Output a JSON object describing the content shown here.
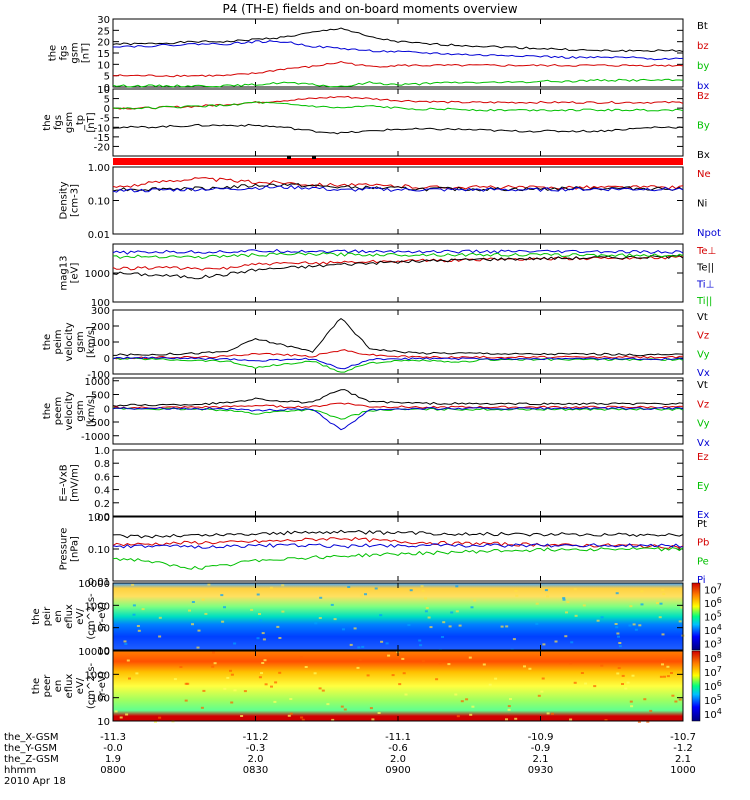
{
  "title": "P4 (TH-E) fields and on-board moments overview",
  "chart_data": [
    {
      "type": "line",
      "ylabel": [
        "the",
        "fgs",
        "gsm",
        "[nT]"
      ],
      "ylim": [
        0,
        30
      ],
      "yticks": [
        "0",
        "5",
        "10",
        "15",
        "20",
        "25",
        "30"
      ],
      "tick_values": [
        0,
        5,
        10,
        15,
        20,
        25,
        30
      ],
      "log": false,
      "series": [
        {
          "name": "Bt",
          "color": "#000000",
          "values": [
            19,
            19,
            19.5,
            20,
            20,
            21,
            22,
            24,
            26,
            22,
            20,
            19,
            18.5,
            18,
            17.5,
            17,
            16.5,
            16,
            16,
            16,
            16
          ]
        },
        {
          "name": "bz",
          "color": "#d40000",
          "values": [
            5,
            5,
            5,
            5,
            5,
            6,
            8,
            9,
            11,
            9,
            9.5,
            9.5,
            9.5,
            9.5,
            9.5,
            9.5,
            9.5,
            9.5,
            9.5,
            9.5,
            9.5
          ]
        },
        {
          "name": "by",
          "color": "#00c000",
          "values": [
            0.5,
            0.5,
            0.5,
            0.5,
            0.5,
            1,
            2,
            1,
            0,
            2,
            1,
            1.5,
            2,
            2,
            2,
            2.5,
            2.5,
            3,
            3,
            3,
            3
          ]
        },
        {
          "name": "bx",
          "color": "#0000d4",
          "values": [
            18,
            18,
            18.5,
            19,
            19,
            20,
            20,
            18,
            17,
            16,
            15.5,
            15,
            14.5,
            14,
            14,
            13.5,
            13,
            13,
            13,
            12.5,
            12.5
          ]
        }
      ]
    },
    {
      "type": "line",
      "ylabel": [
        "the",
        "fgs",
        "gsm",
        "_tp",
        "[nT]"
      ],
      "ylim": [
        -25,
        10
      ],
      "yticks": [
        "-20",
        "-15",
        "-10",
        "-5",
        "0",
        "5",
        "10"
      ],
      "tick_values": [
        -20,
        -15,
        -10,
        -5,
        0,
        5,
        10
      ],
      "log": false,
      "series": [
        {
          "name": "Bz",
          "color": "#d40000",
          "values": [
            0,
            0,
            0.5,
            1,
            2,
            3,
            4,
            5,
            6,
            5,
            4,
            3.5,
            3,
            3,
            3,
            3,
            3,
            3,
            3,
            3,
            3
          ]
        },
        {
          "name": "By",
          "color": "#00c000",
          "values": [
            0,
            0,
            0.5,
            1,
            1.5,
            3,
            2,
            1,
            0,
            1,
            0,
            -0.5,
            -0.5,
            -1,
            -1,
            -1,
            -1,
            -1,
            -1,
            -1,
            -1
          ]
        },
        {
          "name": "Bx",
          "color": "#000000",
          "values": [
            -10,
            -10,
            -9.5,
            -9,
            -9,
            -9,
            -10,
            -12,
            -13,
            -12,
            -11,
            -11,
            -11,
            -11.5,
            -12,
            -12,
            -12,
            -12,
            -11,
            -10,
            -10
          ]
        }
      ]
    },
    {
      "type": "line",
      "ylabel": [
        "Density",
        "[cm-3]"
      ],
      "ylim": [
        0.01,
        1.0
      ],
      "yticks": [
        "0.01",
        "0.10",
        "1.00"
      ],
      "tick_values": [
        0.01,
        0.1,
        1.0
      ],
      "log": true,
      "series": [
        {
          "name": "Ne",
          "color": "#d40000",
          "values": [
            0.25,
            0.3,
            0.4,
            0.45,
            0.4,
            0.35,
            0.35,
            0.3,
            0.3,
            0.28,
            0.27,
            0.25,
            0.25,
            0.25,
            0.25,
            0.24,
            0.25,
            0.25,
            0.25,
            0.25,
            0.25
          ]
        },
        {
          "name": "Ni",
          "color": "#000000",
          "values": [
            0.22,
            0.22,
            0.23,
            0.23,
            0.25,
            0.28,
            0.3,
            0.27,
            0.25,
            0.24,
            0.23,
            0.22,
            0.22,
            0.22,
            0.22,
            0.22,
            0.23,
            0.23,
            0.23,
            0.23,
            0.23
          ]
        },
        {
          "name": "Npot",
          "color": "#0000d4",
          "values": [
            0.2,
            0.2,
            0.21,
            0.22,
            0.22,
            0.24,
            0.25,
            0.24,
            0.2,
            0.22,
            0.21,
            0.21,
            0.21,
            0.21,
            0.21,
            0.21,
            0.22,
            0.22,
            0.22,
            0.22,
            0.22
          ]
        }
      ]
    },
    {
      "type": "line",
      "ylabel": [
        "mag13",
        "[eV]"
      ],
      "ylim": [
        100,
        10000
      ],
      "yticks": [
        "100",
        "1000"
      ],
      "tick_values": [
        100,
        1000
      ],
      "log": true,
      "series": [
        {
          "name": "Te⊥",
          "color": "#d40000",
          "values": [
            1400,
            1500,
            1600,
            1300,
            1500,
            2000,
            2100,
            2200,
            2400,
            2500,
            2600,
            2700,
            2800,
            2900,
            3000,
            3100,
            3200,
            3300,
            3300,
            3400,
            3500
          ]
        },
        {
          "name": "Te||",
          "color": "#000000",
          "values": [
            1000,
            900,
            800,
            700,
            900,
            1300,
            1500,
            1700,
            2000,
            2200,
            2400,
            2600,
            2800,
            3000,
            3100,
            3200,
            3300,
            3400,
            3500,
            3600,
            3700
          ]
        },
        {
          "name": "Ti⊥",
          "color": "#0000d4",
          "values": [
            5000,
            5200,
            5400,
            5300,
            5500,
            5700,
            5800,
            5700,
            5600,
            5500,
            5500,
            5500,
            5500,
            5500,
            5500,
            5400,
            5400,
            5400,
            5300,
            5300,
            5300
          ]
        },
        {
          "name": "Ti||",
          "color": "#00c000",
          "values": [
            3600,
            3700,
            3800,
            3500,
            3900,
            4200,
            4400,
            4500,
            4400,
            4300,
            4300,
            4300,
            4300,
            4300,
            4300,
            4200,
            4200,
            4200,
            4100,
            4100,
            4100
          ]
        }
      ]
    },
    {
      "type": "line",
      "ylabel": [
        "the",
        "peim",
        "velocity",
        "gsm",
        "[km/s]"
      ],
      "ylim": [
        -100,
        300
      ],
      "yticks": [
        "-100",
        "0",
        "100",
        "200",
        "300"
      ],
      "tick_values": [
        -100,
        0,
        100,
        200,
        300
      ],
      "log": false,
      "series": [
        {
          "name": "Vt",
          "color": "#000000",
          "values": [
            20,
            20,
            25,
            30,
            40,
            120,
            80,
            40,
            250,
            60,
            40,
            30,
            30,
            30,
            25,
            25,
            25,
            25,
            20,
            20,
            20
          ]
        },
        {
          "name": "Vz",
          "color": "#d40000",
          "values": [
            0,
            0,
            5,
            5,
            10,
            30,
            20,
            10,
            50,
            20,
            10,
            5,
            5,
            5,
            5,
            5,
            5,
            5,
            5,
            5,
            5
          ]
        },
        {
          "name": "Vy",
          "color": "#00c000",
          "values": [
            -5,
            -5,
            -10,
            -15,
            -20,
            -60,
            -40,
            -20,
            -90,
            -30,
            -20,
            -15,
            -30,
            -10,
            -10,
            -10,
            -10,
            -10,
            -10,
            -10,
            -10
          ]
        },
        {
          "name": "Vx",
          "color": "#0000d4",
          "values": [
            0,
            0,
            0,
            -5,
            -5,
            -20,
            -10,
            -5,
            -70,
            -10,
            -5,
            -5,
            -5,
            -5,
            -5,
            -5,
            -5,
            -5,
            -5,
            -5,
            -5
          ]
        }
      ]
    },
    {
      "type": "line",
      "ylabel": [
        "the",
        "peem",
        "velocity",
        "gsm",
        "[km/s]"
      ],
      "ylim": [
        -1300,
        1100
      ],
      "yticks": [
        "-1000",
        "-500",
        "0",
        "500",
        "1000"
      ],
      "tick_values": [
        -1000,
        -500,
        0,
        500,
        1000
      ],
      "log": false,
      "series": [
        {
          "name": "Vt",
          "color": "#000000",
          "values": [
            100,
            120,
            120,
            150,
            200,
            350,
            250,
            200,
            700,
            250,
            200,
            180,
            170,
            160,
            160,
            160,
            160,
            160,
            160,
            160,
            160
          ]
        },
        {
          "name": "Vz",
          "color": "#d40000",
          "values": [
            20,
            20,
            30,
            40,
            50,
            100,
            60,
            50,
            200,
            60,
            50,
            40,
            40,
            40,
            40,
            40,
            40,
            40,
            40,
            40,
            40
          ]
        },
        {
          "name": "Vy",
          "color": "#00c000",
          "values": [
            -20,
            -20,
            -30,
            -40,
            -60,
            -200,
            -100,
            -50,
            -400,
            -80,
            -50,
            -40,
            -40,
            -40,
            -40,
            -40,
            -40,
            -40,
            -40,
            -40,
            -40
          ]
        },
        {
          "name": "Vx",
          "color": "#0000d4",
          "values": [
            0,
            0,
            0,
            -10,
            -20,
            -100,
            -50,
            -20,
            -800,
            -50,
            -20,
            -10,
            -10,
            -10,
            -10,
            -10,
            -10,
            -10,
            -10,
            -10,
            -10
          ]
        }
      ]
    },
    {
      "type": "line",
      "ylabel": [
        "E=-VxB",
        "[mV/m]"
      ],
      "ylim": [
        0,
        1.0
      ],
      "yticks": [
        "0.0",
        "0.2",
        "0.4",
        "0.6",
        "0.8",
        "1.0"
      ],
      "tick_values": [
        0,
        0.2,
        0.4,
        0.6,
        0.8,
        1.0
      ],
      "log": false,
      "series": [
        {
          "name": "Ez",
          "color": "#d40000",
          "values": []
        },
        {
          "name": "Ey",
          "color": "#00c000",
          "values": []
        },
        {
          "name": "Ex",
          "color": "#0000d4",
          "values": []
        }
      ]
    },
    {
      "type": "line",
      "ylabel": [
        "Pressure",
        "[nPa]"
      ],
      "ylim": [
        0.01,
        1.0
      ],
      "yticks": [
        "0.01",
        "0.10",
        "1.00"
      ],
      "tick_values": [
        0.01,
        0.1,
        1.0
      ],
      "log": true,
      "series": [
        {
          "name": "Pt",
          "color": "#000000",
          "values": [
            0.25,
            0.25,
            0.26,
            0.27,
            0.28,
            0.3,
            0.32,
            0.33,
            0.35,
            0.33,
            0.32,
            0.31,
            0.3,
            0.3,
            0.3,
            0.29,
            0.29,
            0.29,
            0.28,
            0.28,
            0.28
          ]
        },
        {
          "name": "Pb",
          "color": "#d40000",
          "values": [
            0.14,
            0.14,
            0.15,
            0.16,
            0.16,
            0.17,
            0.18,
            0.2,
            0.22,
            0.19,
            0.17,
            0.16,
            0.15,
            0.15,
            0.14,
            0.14,
            0.13,
            0.13,
            0.13,
            0.12,
            0.12
          ]
        },
        {
          "name": "Pe",
          "color": "#00c000",
          "values": [
            0.05,
            0.045,
            0.03,
            0.025,
            0.03,
            0.045,
            0.05,
            0.055,
            0.06,
            0.065,
            0.07,
            0.075,
            0.08,
            0.085,
            0.09,
            0.095,
            0.1,
            0.1,
            0.1,
            0.1,
            0.1
          ]
        },
        {
          "name": "Pi",
          "color": "#0000d4",
          "values": [
            0.12,
            0.12,
            0.12,
            0.12,
            0.12,
            0.13,
            0.13,
            0.13,
            0.12,
            0.13,
            0.13,
            0.13,
            0.13,
            0.13,
            0.13,
            0.13,
            0.13,
            0.13,
            0.13,
            0.13,
            0.13
          ]
        }
      ]
    },
    {
      "type": "heatmap",
      "ylabel": [
        "the",
        "peir",
        "en",
        "eflux",
        "eV/",
        "(cm^2-s-",
        "sr-eV)"
      ],
      "ylim": [
        10,
        10000
      ],
      "yticks": [
        "10",
        "100",
        "1000",
        "10000"
      ],
      "tick_values": [
        10,
        100,
        1000,
        10000
      ],
      "log": true,
      "colorbar_ticks": [
        "10^3",
        "10^4",
        "10^5",
        "10^6",
        "10^7"
      ]
    },
    {
      "type": "heatmap",
      "ylabel": [
        "the",
        "peer",
        "en",
        "eflux",
        "eV/",
        "(cm^2-s-",
        "sr-eV)"
      ],
      "ylim": [
        10,
        10000
      ],
      "yticks": [
        "10",
        "100",
        "1000",
        "10000"
      ],
      "tick_values": [
        10,
        100,
        1000,
        10000
      ],
      "log": true,
      "colorbar_ticks": [
        "10^4",
        "10^5",
        "10^6",
        "10^7",
        "10^8"
      ]
    }
  ],
  "x_axis": {
    "rows": [
      {
        "label": "the_X-GSM",
        "values": [
          "-11.3",
          "-11.2",
          "-11.1",
          "-10.9",
          "-10.7"
        ]
      },
      {
        "label": "the_Y-GSM",
        "values": [
          "-0.0",
          "-0.3",
          "-0.6",
          "-0.9",
          "-1.2"
        ]
      },
      {
        "label": "the_Z-GSM",
        "values": [
          "1.9",
          "2.0",
          "2.0",
          "2.1",
          "2.1"
        ]
      },
      {
        "label": "hhmm",
        "values": [
          "0800",
          "0830",
          "0900",
          "0930",
          "1000"
        ]
      }
    ],
    "date": "2010 Apr 18",
    "tick_fractions": [
      0,
      0.25,
      0.5,
      0.75,
      1.0
    ]
  },
  "status_bar": {
    "color": "#ff0000"
  }
}
